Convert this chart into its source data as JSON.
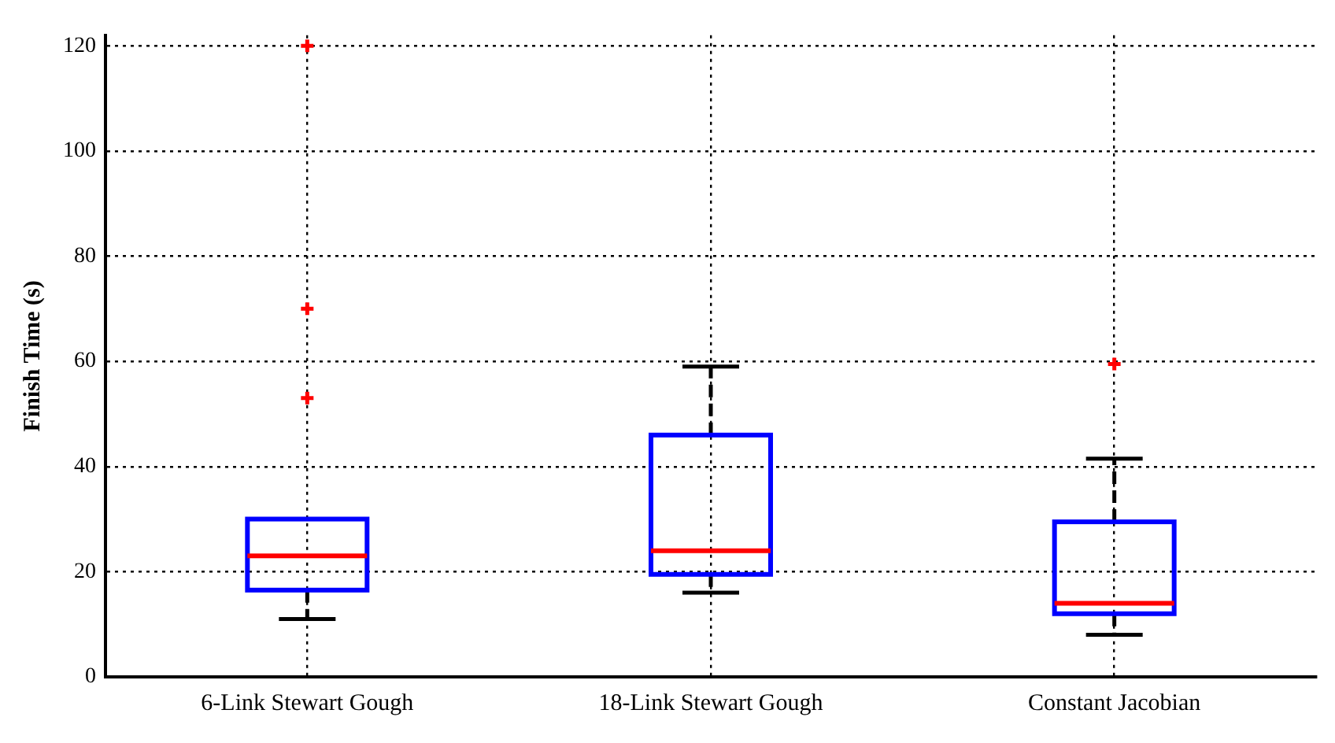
{
  "chart_data": {
    "type": "box",
    "ylabel": "Finish Time (s)",
    "categories": [
      "6-Link Stewart Gough",
      "18-Link Stewart Gough",
      "Constant Jacobian"
    ],
    "series": [
      {
        "color": "#0000ff",
        "boxes": [
          {
            "low": 11,
            "q1": 16.5,
            "median": 23,
            "q3": 30,
            "high": 30,
            "outliers": [
              53,
              70,
              120
            ]
          },
          {
            "low": 16,
            "q1": 19.5,
            "median": 24,
            "q3": 46,
            "high": 59
          },
          {
            "low": 8,
            "q1": 12,
            "median": 14,
            "q3": 29.5,
            "high": 41.5,
            "outliers": [
              59.5
            ]
          }
        ]
      }
    ],
    "ylim": [
      0,
      122
    ],
    "yticks": [
      0,
      20,
      40,
      60,
      80,
      100,
      120
    ],
    "grid": true
  }
}
